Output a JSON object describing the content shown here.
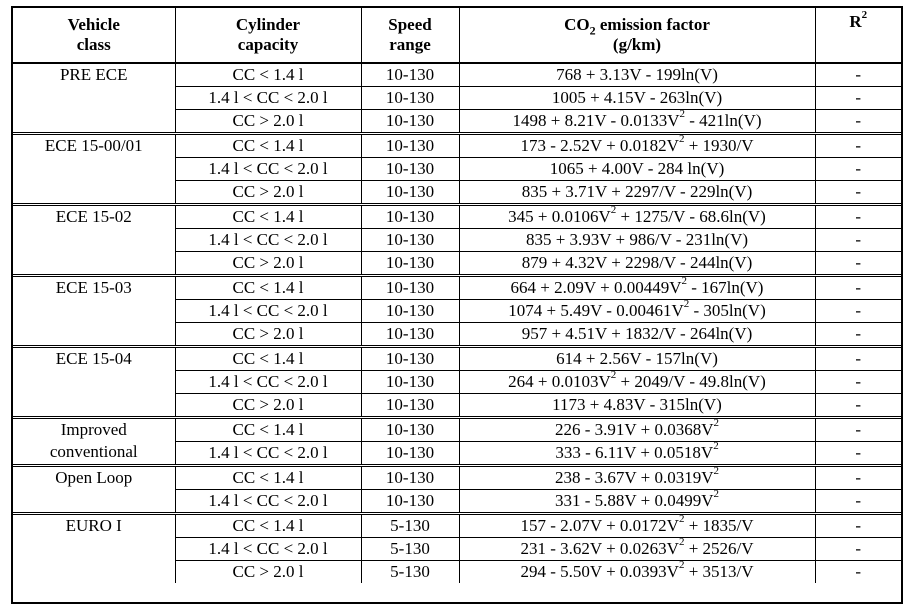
{
  "header": {
    "vehicle_class_1": "Vehicle",
    "vehicle_class_2": "class",
    "cylinder_1": "Cylinder",
    "cylinder_2": "capacity",
    "speed_1": "Speed",
    "speed_2": "range",
    "co2_pre": "CO",
    "co2_sub": "2",
    "co2_post": " emission factor",
    "co2_unit": "(g/km)",
    "r2_base": "R",
    "r2_sup": "2"
  },
  "groups": [
    {
      "vehicle_class": "PRE ECE",
      "rows": [
        {
          "cc": "CC < 1.4 l",
          "speed": "10-130",
          "f": [
            "768 + 3.13V - 199ln(V)"
          ],
          "r2": "-"
        },
        {
          "cc": "1.4 l < CC < 2.0 l",
          "speed": "10-130",
          "f": [
            "1005 + 4.15V - 263ln(V)"
          ],
          "r2": "-"
        },
        {
          "cc": "CC > 2.0 l",
          "speed": "10-130",
          "f": [
            "1498 + 8.21V - 0.0133V",
            "2",
            " - 421ln(V)"
          ],
          "r2": "-"
        }
      ]
    },
    {
      "vehicle_class": "ECE 15-00/01",
      "rows": [
        {
          "cc": "CC < 1.4 l",
          "speed": "10-130",
          "f": [
            "173 - 2.52V + 0.0182V",
            "2",
            " + 1930/V"
          ],
          "r2": "-"
        },
        {
          "cc": "1.4 l < CC < 2.0 l",
          "speed": "10-130",
          "f": [
            "1065 + 4.00V - 284 ln(V)"
          ],
          "r2": "-"
        },
        {
          "cc": "CC > 2.0 l",
          "speed": "10-130",
          "f": [
            "835 + 3.71V + 2297/V - 229ln(V)"
          ],
          "r2": "-"
        }
      ]
    },
    {
      "vehicle_class": "ECE 15-02",
      "rows": [
        {
          "cc": "CC < 1.4 l",
          "speed": "10-130",
          "f": [
            "345 + 0.0106V",
            "2",
            " + 1275/V - 68.6ln(V)"
          ],
          "r2": "-"
        },
        {
          "cc": "1.4 l < CC < 2.0 l",
          "speed": "10-130",
          "f": [
            "835 + 3.93V + 986/V - 231ln(V)"
          ],
          "r2": "-"
        },
        {
          "cc": "CC > 2.0 l",
          "speed": "10-130",
          "f": [
            "879 + 4.32V + 2298/V - 244ln(V)"
          ],
          "r2": "-"
        }
      ]
    },
    {
      "vehicle_class": "ECE 15-03",
      "rows": [
        {
          "cc": "CC < 1.4 l",
          "speed": "10-130",
          "f": [
            "664 + 2.09V + 0.00449V",
            "2",
            " - 167ln(V)"
          ],
          "r2": "-"
        },
        {
          "cc": "1.4 l < CC < 2.0 l",
          "speed": "10-130",
          "f": [
            "1074 + 5.49V - 0.00461V",
            "2",
            " - 305ln(V)"
          ],
          "r2": "-"
        },
        {
          "cc": "CC > 2.0 l",
          "speed": "10-130",
          "f": [
            "957 + 4.51V + 1832/V - 264ln(V)"
          ],
          "r2": "-"
        }
      ]
    },
    {
      "vehicle_class": "ECE 15-04",
      "rows": [
        {
          "cc": "CC < 1.4 l",
          "speed": "10-130",
          "f": [
            "614 + 2.56V - 157ln(V)"
          ],
          "r2": "-"
        },
        {
          "cc": "1.4 l < CC < 2.0 l",
          "speed": "10-130",
          "f": [
            "264 + 0.0103V",
            "2",
            " + 2049/V - 49.8ln(V)"
          ],
          "r2": "-"
        },
        {
          "cc": "CC > 2.0 l",
          "speed": "10-130",
          "f": [
            "1173 + 4.83V - 315ln(V)"
          ],
          "r2": "-"
        }
      ]
    },
    {
      "vehicle_class": "Improved conventional",
      "rows": [
        {
          "cc": "CC < 1.4 l",
          "speed": "10-130",
          "f": [
            "226 - 3.91V + 0.0368V",
            "2",
            ""
          ],
          "r2": "-"
        },
        {
          "cc": "1.4 l < CC < 2.0 l",
          "speed": "10-130",
          "f": [
            "333 - 6.11V + 0.0518V",
            "2",
            ""
          ],
          "r2": "-"
        }
      ]
    },
    {
      "vehicle_class": "Open Loop",
      "rows": [
        {
          "cc": "CC < 1.4 l",
          "speed": "10-130",
          "f": [
            "238 - 3.67V + 0.0319V",
            "2",
            ""
          ],
          "r2": "-"
        },
        {
          "cc": "1.4 l < CC < 2.0 l",
          "speed": "10-130",
          "f": [
            "331 - 5.88V + 0.0499V",
            "2",
            ""
          ],
          "r2": "-"
        }
      ]
    },
    {
      "vehicle_class": "EURO I",
      "rows": [
        {
          "cc": "CC < 1.4 l",
          "speed": "5-130",
          "f": [
            "157 - 2.07V + 0.0172V",
            "2",
            " + 1835/V"
          ],
          "r2": "-"
        },
        {
          "cc": "1.4 l < CC < 2.0 l",
          "speed": "5-130",
          "f": [
            "231 - 3.62V + 0.0263V",
            "2",
            " + 2526/V"
          ],
          "r2": "-"
        },
        {
          "cc": "CC > 2.0 l",
          "speed": "5-130",
          "f": [
            "294 - 5.50V + 0.0393V",
            "2",
            " + 3513/V"
          ],
          "r2": "-"
        }
      ]
    }
  ]
}
